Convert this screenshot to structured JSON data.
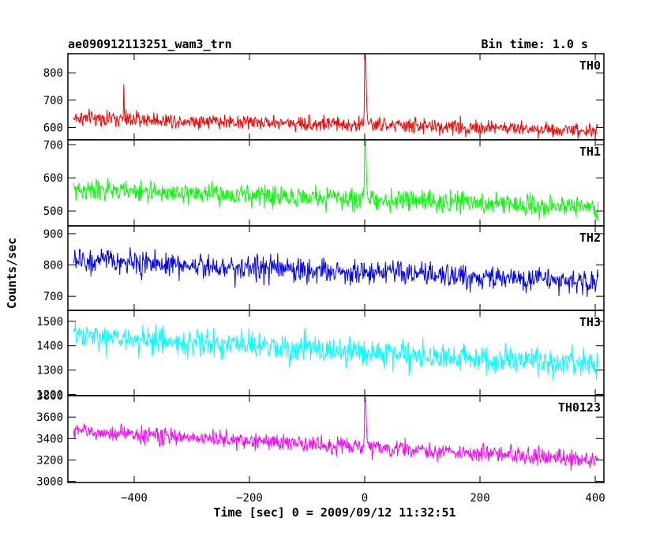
{
  "chart_data": {
    "type": "line",
    "title_left": "ae090912113251_wam3_trn",
    "title_right": "Bin time: 1.0 s",
    "xlabel": "Time [sec] 0 = 2009/09/12 11:32:51",
    "ylabel": "Counts/sec",
    "xlim": [
      -515,
      415
    ],
    "x_range": [
      -505,
      405
    ],
    "x_step": 1,
    "xticks": [
      -400,
      -200,
      0,
      200,
      400
    ],
    "xtick_labels": [
      "−400",
      "−200",
      "0",
      "200",
      "400"
    ],
    "burst": {
      "t": [
        -1,
        0,
        1,
        2,
        3,
        4,
        5
      ],
      "shape": [
        0.18,
        0.9,
        1.0,
        0.85,
        0.45,
        0.2,
        0.08
      ]
    },
    "panels": [
      {
        "name": "TH0",
        "color": "#ff0000",
        "ylim": [
          555,
          870
        ],
        "yticks": [
          600,
          700,
          800
        ],
        "baseline_start": 635,
        "baseline_end": 590,
        "noise": 20,
        "burst_peak": 870,
        "spike": {
          "t": -418,
          "v": 758
        }
      },
      {
        "name": "TH1",
        "color": "#00ff00",
        "ylim": [
          455,
          715
        ],
        "yticks": [
          500,
          600,
          700
        ],
        "baseline_start": 565,
        "baseline_end": 512,
        "noise": 22,
        "burst_peak": 715
      },
      {
        "name": "TH2",
        "color": "#0000ff",
        "ylim": [
          655,
          925
        ],
        "yticks": [
          700,
          800,
          900
        ],
        "baseline_start": 815,
        "baseline_end": 745,
        "noise": 28,
        "burst_peak": null
      },
      {
        "name": "TH3",
        "color": "#00ffff",
        "ylim": [
          1195,
          1545
        ],
        "yticks": [
          1200,
          1300,
          1400,
          1500
        ],
        "baseline_start": 1440,
        "baseline_end": 1320,
        "noise": 40,
        "burst_peak": null
      },
      {
        "name": "TH0123",
        "color": "#ff00ff",
        "ylim": [
          2990,
          3800
        ],
        "yticks": [
          3000,
          3200,
          3400,
          3600,
          3800
        ],
        "baseline_start": 3470,
        "baseline_end": 3200,
        "noise": 55,
        "burst_peak": 3790
      }
    ]
  }
}
